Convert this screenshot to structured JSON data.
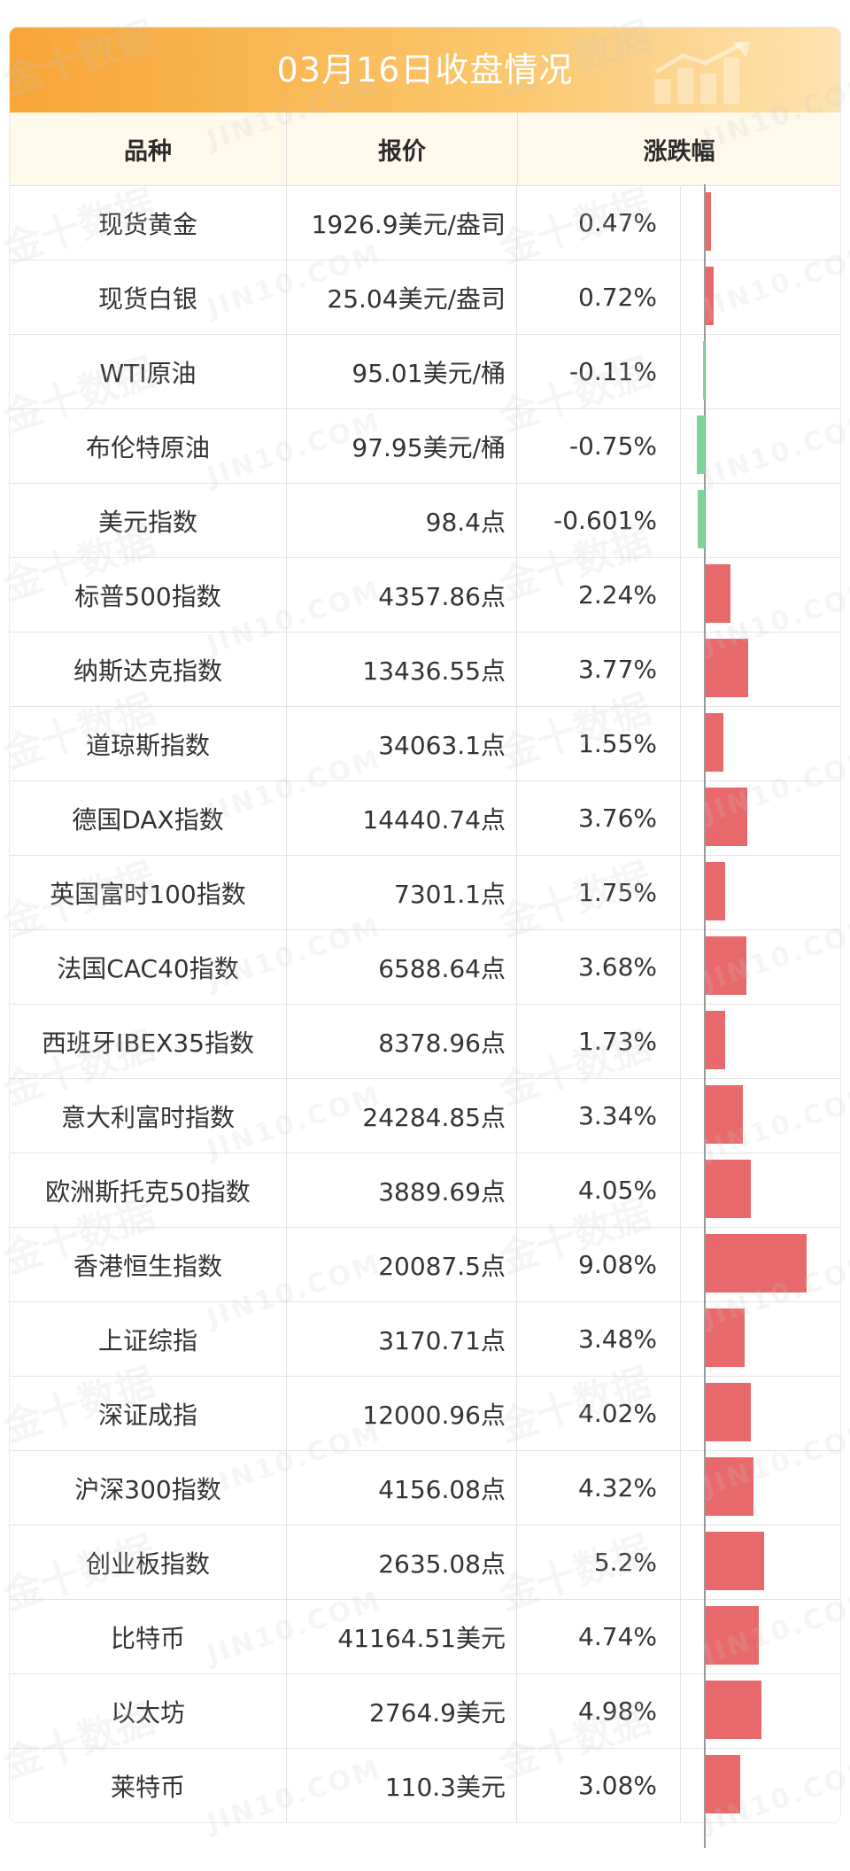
{
  "title": "03月16日收盘情况",
  "headers": {
    "col1": "品种",
    "col2": "报价",
    "col3": "涨跌幅"
  },
  "watermark": {
    "cn": "金十数据",
    "en": "JIN10.COM"
  },
  "colors": {
    "up": "#e8696b",
    "down": "#7fd49a",
    "banner_start": "#f7a637",
    "banner_end": "#fde3b1"
  },
  "chart_data": {
    "type": "table",
    "columns": [
      "品种",
      "报价",
      "涨跌幅"
    ],
    "rows": [
      {
        "name": "现货黄金",
        "quote": "1926.9美元/盎司",
        "change_text": "0.47%",
        "change": 0.47
      },
      {
        "name": "现货白银",
        "quote": "25.04美元/盎司",
        "change_text": "0.72%",
        "change": 0.72
      },
      {
        "name": "WTI原油",
        "quote": "95.01美元/桶",
        "change_text": "-0.11%",
        "change": -0.11
      },
      {
        "name": "布伦特原油",
        "quote": "97.95美元/桶",
        "change_text": "-0.75%",
        "change": -0.75
      },
      {
        "name": "美元指数",
        "quote": "98.4点",
        "change_text": "-0.601%",
        "change": -0.601
      },
      {
        "name": "标普500指数",
        "quote": "4357.86点",
        "change_text": "2.24%",
        "change": 2.24
      },
      {
        "name": "纳斯达克指数",
        "quote": "13436.55点",
        "change_text": "3.77%",
        "change": 3.77
      },
      {
        "name": "道琼斯指数",
        "quote": "34063.1点",
        "change_text": "1.55%",
        "change": 1.55
      },
      {
        "name": "德国DAX指数",
        "quote": "14440.74点",
        "change_text": "3.76%",
        "change": 3.76
      },
      {
        "name": "英国富时100指数",
        "quote": "7301.1点",
        "change_text": "1.75%",
        "change": 1.75
      },
      {
        "name": "法国CAC40指数",
        "quote": "6588.64点",
        "change_text": "3.68%",
        "change": 3.68
      },
      {
        "name": "西班牙IBEX35指数",
        "quote": "8378.96点",
        "change_text": "1.73%",
        "change": 1.73
      },
      {
        "name": "意大利富时指数",
        "quote": "24284.85点",
        "change_text": "3.34%",
        "change": 3.34
      },
      {
        "name": "欧洲斯托克50指数",
        "quote": "3889.69点",
        "change_text": "4.05%",
        "change": 4.05
      },
      {
        "name": "香港恒生指数",
        "quote": "20087.5点",
        "change_text": "9.08%",
        "change": 9.08
      },
      {
        "name": "上证综指",
        "quote": "3170.71点",
        "change_text": "3.48%",
        "change": 3.48
      },
      {
        "name": "深证成指",
        "quote": "12000.96点",
        "change_text": "4.02%",
        "change": 4.02
      },
      {
        "name": "沪深300指数",
        "quote": "4156.08点",
        "change_text": "4.32%",
        "change": 4.32
      },
      {
        "name": "创业板指数",
        "quote": "2635.08点",
        "change_text": "5.2%",
        "change": 5.2
      },
      {
        "name": "比特币",
        "quote": "41164.51美元",
        "change_text": "4.74%",
        "change": 4.74
      },
      {
        "name": "以太坊",
        "quote": "2764.9美元",
        "change_text": "4.98%",
        "change": 4.98
      },
      {
        "name": "莱特币",
        "quote": "110.3美元",
        "change_text": "3.08%",
        "change": 3.08
      }
    ]
  }
}
